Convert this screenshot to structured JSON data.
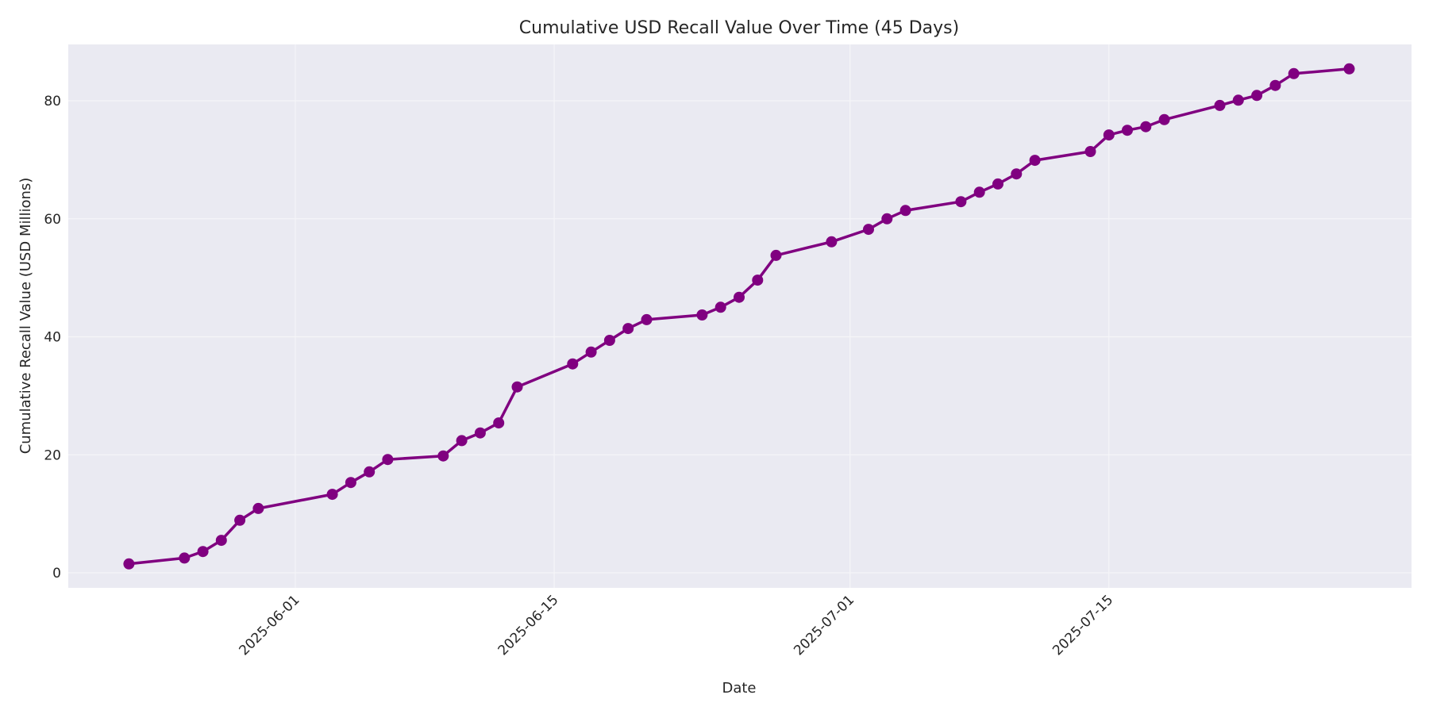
{
  "chart_data": {
    "type": "line",
    "title": "Cumulative USD Recall Value Over Time (45 Days)",
    "xlabel": "Date",
    "ylabel": "Cumulative Recall Value (USD Millions)",
    "ylim": [
      -2.5,
      90
    ],
    "y_ticks": [
      0,
      20,
      40,
      60,
      80
    ],
    "x_ticks": [
      "2025-06-01",
      "2025-06-15",
      "2025-07-01",
      "2025-07-15"
    ],
    "grid": true,
    "legend": null,
    "series": [
      {
        "name": "Cumulative Recall Value",
        "color": "#800080",
        "marker": "circle",
        "x": [
          "2025-05-23",
          "2025-05-26",
          "2025-05-27",
          "2025-05-28",
          "2025-05-29",
          "2025-05-30",
          "2025-06-03",
          "2025-06-04",
          "2025-06-05",
          "2025-06-06",
          "2025-06-09",
          "2025-06-10",
          "2025-06-11",
          "2025-06-12",
          "2025-06-13",
          "2025-06-16",
          "2025-06-17",
          "2025-06-18",
          "2025-06-19",
          "2025-06-20",
          "2025-06-23",
          "2025-06-24",
          "2025-06-25",
          "2025-06-26",
          "2025-06-27",
          "2025-06-30",
          "2025-07-02",
          "2025-07-03",
          "2025-07-04",
          "2025-07-07",
          "2025-07-08",
          "2025-07-09",
          "2025-07-10",
          "2025-07-11",
          "2025-07-14",
          "2025-07-15",
          "2025-07-16",
          "2025-07-17",
          "2025-07-18",
          "2025-07-21",
          "2025-07-22",
          "2025-07-23",
          "2025-07-24",
          "2025-07-25",
          "2025-07-28"
        ],
        "values": [
          1.5,
          2.5,
          3.6,
          5.5,
          8.9,
          10.9,
          13.3,
          15.3,
          17.1,
          19.2,
          19.8,
          22.4,
          23.7,
          25.4,
          31.5,
          35.4,
          37.4,
          39.4,
          41.4,
          42.9,
          43.7,
          45.0,
          46.7,
          49.6,
          53.8,
          56.1,
          58.2,
          60.0,
          61.4,
          62.9,
          64.5,
          65.9,
          67.6,
          69.9,
          71.4,
          74.2,
          75.0,
          75.6,
          76.8,
          79.2,
          80.1,
          80.9,
          82.6,
          84.6,
          85.4
        ]
      }
    ]
  },
  "colors": {
    "plot_background": "#eaeaf2",
    "grid": "#f5f5f8",
    "line": "#800080",
    "text": "#262626"
  }
}
